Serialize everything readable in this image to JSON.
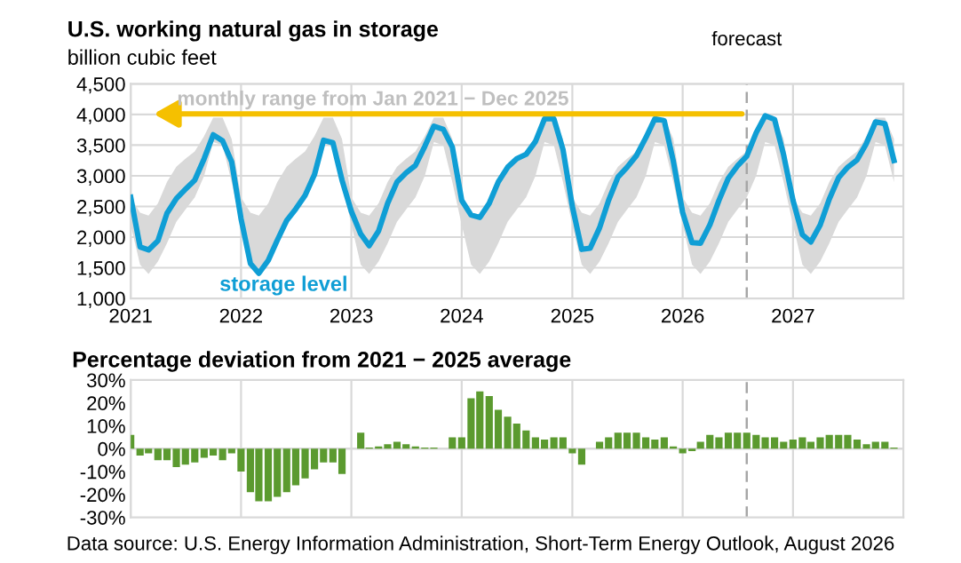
{
  "chart_data": [
    {
      "type": "line",
      "title": "U.S. working natural gas in storage",
      "subtitle": "billion cubic feet",
      "x": [
        "2021-01",
        "2021-02",
        "2021-03",
        "2021-04",
        "2021-05",
        "2021-06",
        "2021-07",
        "2021-08",
        "2021-09",
        "2021-10",
        "2021-11",
        "2021-12",
        "2022-01",
        "2022-02",
        "2022-03",
        "2022-04",
        "2022-05",
        "2022-06",
        "2022-07",
        "2022-08",
        "2022-09",
        "2022-10",
        "2022-11",
        "2022-12",
        "2023-01",
        "2023-02",
        "2023-03",
        "2023-04",
        "2023-05",
        "2023-06",
        "2023-07",
        "2023-08",
        "2023-09",
        "2023-10",
        "2023-11",
        "2023-12",
        "2024-01",
        "2024-02",
        "2024-03",
        "2024-04",
        "2024-05",
        "2024-06",
        "2024-07",
        "2024-08",
        "2024-09",
        "2024-10",
        "2024-11",
        "2024-12",
        "2025-01",
        "2025-02",
        "2025-03",
        "2025-04",
        "2025-05",
        "2025-06",
        "2025-07",
        "2025-08",
        "2025-09",
        "2025-10",
        "2025-11",
        "2025-12",
        "2026-01",
        "2026-02",
        "2026-03",
        "2026-04",
        "2026-05",
        "2026-06",
        "2026-07",
        "2026-08",
        "2026-09",
        "2026-10",
        "2026-11",
        "2026-12",
        "2027-01",
        "2027-02",
        "2027-03",
        "2027-04",
        "2027-05",
        "2027-06",
        "2027-07",
        "2027-08",
        "2027-09",
        "2027-10",
        "2027-11",
        "2027-12"
      ],
      "series": [
        {
          "name": "storage level",
          "color": "#0f9ed5",
          "values": [
            2650,
            1840,
            1790,
            1940,
            2390,
            2630,
            2780,
            2930,
            3280,
            3670,
            3570,
            3230,
            2300,
            1570,
            1410,
            1620,
            1950,
            2270,
            2460,
            2680,
            3020,
            3580,
            3540,
            2930,
            2420,
            2050,
            1860,
            2100,
            2550,
            2900,
            3050,
            3170,
            3480,
            3810,
            3760,
            3470,
            2600,
            2360,
            2320,
            2550,
            2900,
            3140,
            3280,
            3350,
            3560,
            3930,
            3930,
            3430,
            2500,
            1800,
            1820,
            2150,
            2600,
            2980,
            3140,
            3330,
            3620,
            3930,
            3900,
            3240,
            2400,
            1910,
            1900,
            2200,
            2600,
            2960,
            3160,
            3320,
            3700,
            3980,
            3920,
            3340,
            2600,
            2040,
            1920,
            2200,
            2620,
            2970,
            3140,
            3260,
            3530,
            3880,
            3850,
            3250
          ],
          "lower": [
            2200,
            1550,
            1400,
            1600,
            1900,
            2250,
            2450,
            2650,
            3000,
            3550,
            3500,
            2900,
            2200,
            1550,
            1400,
            1600,
            1900,
            2250,
            2450,
            2650,
            3000,
            3550,
            3500,
            2900,
            2200,
            1550,
            1400,
            1600,
            1900,
            2250,
            2450,
            2650,
            3000,
            3550,
            3500,
            2900,
            2200,
            1550,
            1400,
            1600,
            1900,
            2250,
            2450,
            2650,
            3000,
            3550,
            3500,
            2900,
            2200,
            1550,
            1400,
            1600,
            1900,
            2250,
            2450,
            2650,
            3000,
            3550,
            3500,
            2900,
            2200,
            1550,
            1400,
            1600,
            1900,
            2250,
            2450,
            2650,
            3000,
            3550,
            3500,
            2900,
            2200,
            1550,
            1400,
            1600,
            1900,
            2250,
            2450,
            2650,
            3000,
            3550,
            3500,
            2900
          ],
          "upper": [
            2650,
            2400,
            2350,
            2550,
            2900,
            3150,
            3280,
            3400,
            3650,
            3950,
            3950,
            3600,
            2650,
            2400,
            2350,
            2550,
            2900,
            3150,
            3280,
            3400,
            3650,
            3950,
            3950,
            3600,
            2650,
            2400,
            2350,
            2550,
            2900,
            3150,
            3280,
            3400,
            3650,
            3950,
            3950,
            3600,
            2650,
            2400,
            2350,
            2550,
            2900,
            3150,
            3280,
            3400,
            3650,
            3950,
            3950,
            3600,
            2650,
            2400,
            2350,
            2550,
            2900,
            3150,
            3280,
            3400,
            3650,
            3950,
            3950,
            3600,
            2650,
            2400,
            2350,
            2550,
            2900,
            3150,
            3280,
            3400,
            3650,
            3950,
            3950,
            3600,
            2650,
            2400,
            2350,
            2550,
            2900,
            3150,
            3280,
            3400,
            3650,
            3950,
            3950,
            3600
          ]
        }
      ],
      "annotations": [
        "monthly range from Jan 2021 − Dec 2025"
      ],
      "ref_lines": [
        {
          "axis": "x",
          "value": "2026-08",
          "label": "forecast",
          "color": "#a6a6a6",
          "line_style": "dashed"
        }
      ],
      "xlim": [
        "2021-01",
        "2028-01"
      ],
      "xticks": [
        {
          "value": "2021-01",
          "label": "2021"
        },
        {
          "value": "2022-01",
          "label": "2022"
        },
        {
          "value": "2023-01",
          "label": "2023"
        },
        {
          "value": "2024-01",
          "label": "2024"
        },
        {
          "value": "2025-01",
          "label": "2025"
        },
        {
          "value": "2026-01",
          "label": "2026"
        },
        {
          "value": "2027-01",
          "label": "2027"
        }
      ],
      "ylim": [
        1000,
        4500
      ],
      "yticks": [
        {
          "value": 1000,
          "label": "1,000"
        },
        {
          "value": 1500,
          "label": "1,500"
        },
        {
          "value": 2000,
          "label": "2,000"
        },
        {
          "value": 2500,
          "label": "2,500"
        },
        {
          "value": 3000,
          "label": "3,000"
        },
        {
          "value": 3500,
          "label": "3,500"
        },
        {
          "value": 4000,
          "label": "4,000"
        },
        {
          "value": 4500,
          "label": "4,500"
        }
      ],
      "grid": true
    },
    {
      "type": "bar",
      "title": "Percentage deviation from 2021 − 2025 average",
      "x": [
        "2021-01",
        "2021-02",
        "2021-03",
        "2021-04",
        "2021-05",
        "2021-06",
        "2021-07",
        "2021-08",
        "2021-09",
        "2021-10",
        "2021-11",
        "2021-12",
        "2022-01",
        "2022-02",
        "2022-03",
        "2022-04",
        "2022-05",
        "2022-06",
        "2022-07",
        "2022-08",
        "2022-09",
        "2022-10",
        "2022-11",
        "2022-12",
        "2023-01",
        "2023-02",
        "2023-03",
        "2023-04",
        "2023-05",
        "2023-06",
        "2023-07",
        "2023-08",
        "2023-09",
        "2023-10",
        "2023-11",
        "2023-12",
        "2024-01",
        "2024-02",
        "2024-03",
        "2024-04",
        "2024-05",
        "2024-06",
        "2024-07",
        "2024-08",
        "2024-09",
        "2024-10",
        "2024-11",
        "2024-12",
        "2025-01",
        "2025-02",
        "2025-03",
        "2025-04",
        "2025-05",
        "2025-06",
        "2025-07",
        "2025-08",
        "2025-09",
        "2025-10",
        "2025-11",
        "2025-12",
        "2026-01",
        "2026-02",
        "2026-03",
        "2026-04",
        "2026-05",
        "2026-06",
        "2026-07",
        "2026-08",
        "2026-09",
        "2026-10",
        "2026-11",
        "2026-12",
        "2027-01",
        "2027-02",
        "2027-03",
        "2027-04",
        "2027-05",
        "2027-06",
        "2027-07",
        "2027-08",
        "2027-09",
        "2027-10",
        "2027-11",
        "2027-12"
      ],
      "values": [
        6,
        -3,
        -2,
        -5,
        -5,
        -8,
        -7,
        -6,
        -4,
        -3,
        -5,
        -2,
        -10,
        -19,
        -23,
        -23,
        -21,
        -19,
        -16,
        -13,
        -9,
        -6,
        -6,
        -11,
        0,
        7,
        0.5,
        1,
        2,
        3,
        2,
        1,
        0.5,
        0.5,
        0,
        5,
        5,
        22,
        25,
        23,
        17,
        14,
        11,
        8,
        5,
        4,
        5,
        5,
        -2,
        -7,
        0,
        3,
        5,
        7,
        7,
        7,
        5,
        4,
        5,
        1,
        -2,
        -1,
        3,
        6,
        5,
        7,
        7,
        7,
        6,
        5,
        5,
        3,
        4,
        5,
        3,
        5,
        6,
        6,
        6,
        4,
        2,
        3,
        3,
        0.5
      ],
      "color": "#5b9a2f",
      "annotations": [
        "Data source: U.S. Energy Information Administration, Short-Term Energy Outlook, August 2026"
      ],
      "ref_lines": [
        {
          "axis": "x",
          "value": "2026-08",
          "color": "#a6a6a6",
          "line_style": "dashed"
        },
        {
          "axis": "y",
          "value": 0,
          "color": "#d9d9d9",
          "line_style": "solid"
        }
      ],
      "xlim": [
        "2021-01",
        "2028-01"
      ],
      "xticks": [
        {
          "value": "2021-01",
          "label": null
        },
        {
          "value": "2022-01",
          "label": null
        },
        {
          "value": "2023-01",
          "label": null
        },
        {
          "value": "2024-01",
          "label": null
        },
        {
          "value": "2025-01",
          "label": null
        },
        {
          "value": "2026-01",
          "label": null
        },
        {
          "value": "2027-01",
          "label": null
        }
      ],
      "ylim": [
        -30,
        30
      ],
      "yticks": [
        {
          "value": -30,
          "label": "-30%"
        },
        {
          "value": -20,
          "label": "-20%"
        },
        {
          "value": -10,
          "label": "-10%"
        },
        {
          "value": 0,
          "label": "0%"
        },
        {
          "value": 10,
          "label": "10%"
        },
        {
          "value": 20,
          "label": "20%"
        },
        {
          "value": 30,
          "label": "30%"
        }
      ],
      "tick_labels": "y",
      "grid": "x"
    }
  ]
}
